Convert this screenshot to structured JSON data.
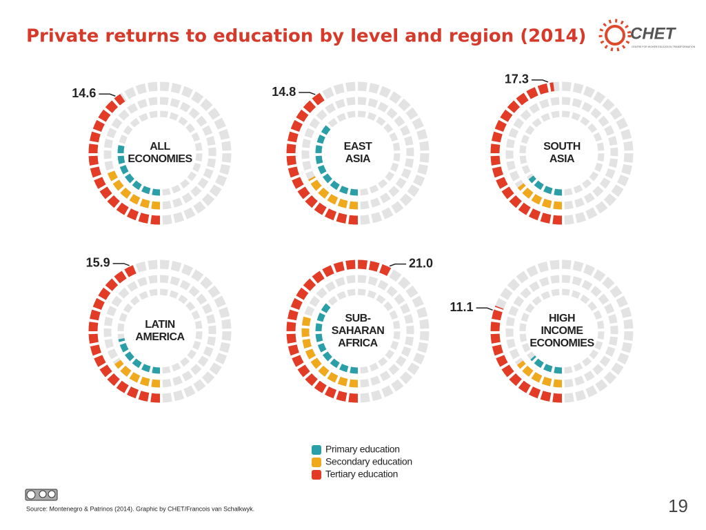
{
  "title": "Private returns to education by level and region (2014)",
  "logo": {
    "name": "CHET",
    "subtitle": "CENTRE FOR HIGHER EDUCATION TRANSFORMATION"
  },
  "source": "Source: Montenegro & Patrinos (2014). Graphic by CHET/Francois van Schalkwyk.",
  "page_number": "19",
  "chart_data": {
    "type": "radial",
    "categories": [
      "ALL ECONOMIES",
      "EAST ASIA",
      "SOUTH ASIA",
      "LATIN AMERICA",
      "SUB-SAHARAN AFRICA",
      "HIGH INCOME ECONOMIES"
    ],
    "rlim": [
      0,
      36
    ],
    "series": [
      {
        "name": "Primary education",
        "color": "#2a9fa8",
        "values": [
          10.3,
          13.4,
          5.2,
          7.9,
          13.4,
          4.8
        ]
      },
      {
        "name": "Secondary education",
        "color": "#f0a81c",
        "values": [
          6.9,
          6.2,
          5.2,
          5.4,
          10.8,
          5.3
        ]
      },
      {
        "name": "Tertiary education",
        "color": "#e23b26",
        "values": [
          14.6,
          14.8,
          17.3,
          15.9,
          21.0,
          11.1
        ],
        "value_labels": [
          "14.6",
          "14.8",
          "17.3",
          "15.9",
          "21.0",
          "11.1"
        ]
      }
    ],
    "background_color": "#e3e3e3"
  }
}
